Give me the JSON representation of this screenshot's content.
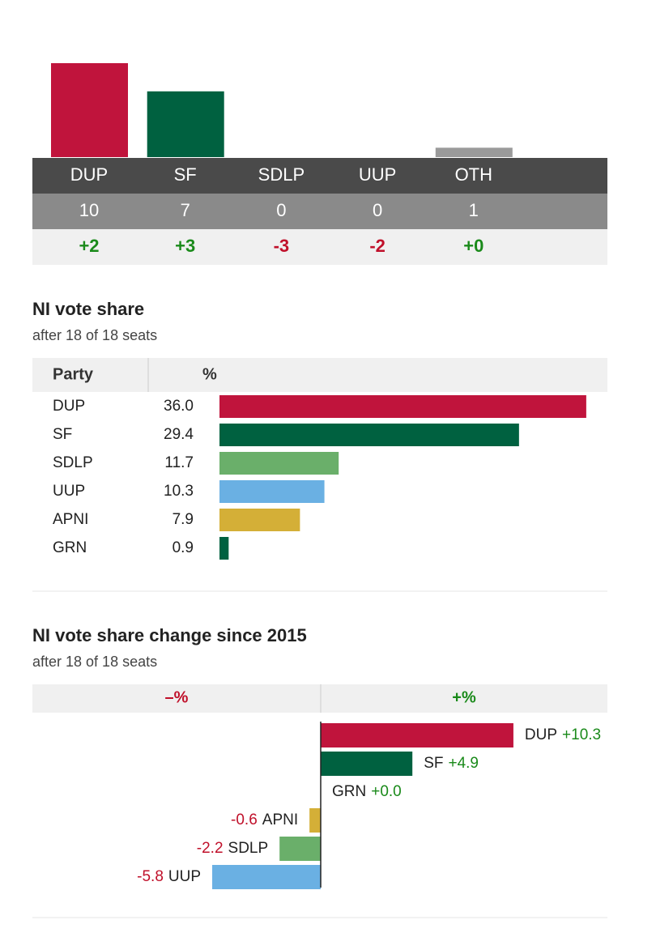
{
  "seats": {
    "parties": [
      "DUP",
      "SF",
      "SDLP",
      "UUP",
      "OTH"
    ],
    "colors": [
      "#c0143c",
      "#006140",
      "#6aaf6a",
      "#6ab0e3",
      "#9a9a9a"
    ],
    "values": [
      10,
      7,
      0,
      0,
      1
    ],
    "changes": [
      "+2",
      "+3",
      "-3",
      "-2",
      "+0"
    ]
  },
  "vote_share": {
    "title": "NI vote share",
    "subtitle": "after 18 of 18 seats",
    "headers": [
      "Party",
      "%"
    ],
    "parties": [
      "DUP",
      "SF",
      "SDLP",
      "UUP",
      "APNI",
      "GRN"
    ],
    "colors": [
      "#c0143c",
      "#006140",
      "#6aaf6a",
      "#6ab0e3",
      "#d4af37",
      "#006140"
    ],
    "values": [
      36.0,
      29.4,
      11.7,
      10.3,
      7.9,
      0.9
    ],
    "value_labels": [
      "36.0",
      "29.4",
      "11.7",
      "10.3",
      "7.9",
      "0.9"
    ]
  },
  "vote_change": {
    "title": "NI vote share change since 2015",
    "subtitle": "after 18 of 18 seats",
    "headers": [
      "–%",
      "+%"
    ],
    "parties": [
      "DUP",
      "SF",
      "GRN",
      "APNI",
      "SDLP",
      "UUP"
    ],
    "colors": [
      "#c0143c",
      "#006140",
      "#006140",
      "#d4af37",
      "#6aaf6a",
      "#6ab0e3"
    ],
    "values": [
      10.3,
      4.9,
      0.0,
      -0.6,
      -2.2,
      -5.8
    ],
    "value_labels": [
      "+10.3",
      "+4.9",
      "+0.0",
      "-0.6",
      "-2.2",
      "-5.8"
    ]
  }
}
